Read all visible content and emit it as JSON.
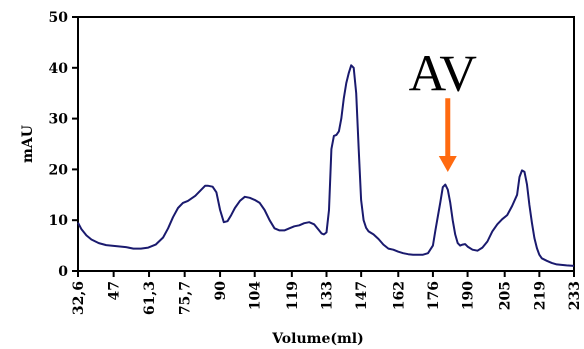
{
  "chart_data": {
    "type": "line",
    "xlabel": "Volume(ml)",
    "ylabel": "mAU",
    "ylim": [
      0,
      50
    ],
    "xlim": [
      32.6,
      233
    ],
    "y_ticks": [
      "0",
      "10",
      "20",
      "30",
      "40",
      "50"
    ],
    "x_ticks": [
      {
        "value": 32.6,
        "label": "32,6"
      },
      {
        "value": 47,
        "label": "47"
      },
      {
        "value": 61.3,
        "label": "61,3"
      },
      {
        "value": 75.7,
        "label": "75,7"
      },
      {
        "value": 90,
        "label": "90"
      },
      {
        "value": 104,
        "label": "104"
      },
      {
        "value": 119,
        "label": "119"
      },
      {
        "value": 133,
        "label": "133"
      },
      {
        "value": 147,
        "label": "147"
      },
      {
        "value": 162,
        "label": "162"
      },
      {
        "value": 176,
        "label": "176"
      },
      {
        "value": 190,
        "label": "190"
      },
      {
        "value": 205,
        "label": "205"
      },
      {
        "value": 219,
        "label": "219"
      },
      {
        "value": 233,
        "label": "233"
      }
    ],
    "grid": false,
    "series": [
      {
        "color": "#1a1a6e",
        "x": [
          32.6,
          34,
          36,
          38,
          41,
          44,
          48,
          52,
          55,
          58,
          61,
          64,
          67,
          69,
          71,
          73,
          75,
          77,
          80,
          82,
          84,
          85,
          87,
          88.5,
          90,
          91.5,
          93,
          94.5,
          96,
          98,
          100,
          102,
          104,
          106,
          108,
          110,
          112,
          114,
          116,
          118,
          120,
          122,
          124,
          126,
          128,
          130,
          131,
          132,
          133,
          134,
          135,
          136,
          137,
          138,
          139,
          140,
          141,
          142,
          143,
          144,
          145,
          146,
          147,
          148,
          149,
          150,
          151,
          152,
          154,
          156,
          158,
          160,
          162,
          164,
          166,
          168,
          170,
          172,
          174,
          176,
          177,
          178,
          179,
          180,
          181,
          182,
          183,
          184,
          185,
          186,
          187,
          188,
          189,
          190,
          192,
          194,
          196,
          198,
          200,
          202,
          204,
          206,
          208,
          210,
          211,
          212,
          213,
          214,
          215,
          216,
          217,
          218,
          219,
          220,
          222,
          224,
          226,
          228,
          230,
          233
        ],
        "y": [
          9.5,
          8.2,
          7.0,
          6.2,
          5.5,
          5.1,
          4.9,
          4.7,
          4.4,
          4.4,
          4.6,
          5.2,
          6.6,
          8.4,
          10.6,
          12.4,
          13.4,
          13.8,
          14.8,
          15.8,
          16.8,
          16.8,
          16.6,
          15.5,
          12.0,
          9.6,
          9.8,
          11.0,
          12.4,
          13.8,
          14.6,
          14.4,
          14.0,
          13.4,
          12.0,
          10.0,
          8.4,
          8.0,
          8.0,
          8.4,
          8.8,
          9.0,
          9.4,
          9.6,
          9.2,
          8.0,
          7.4,
          7.2,
          7.6,
          12.0,
          24.0,
          26.6,
          26.8,
          27.5,
          30.0,
          34.0,
          37.0,
          39.0,
          40.5,
          40.0,
          35.0,
          24.0,
          14.0,
          10.0,
          8.5,
          7.8,
          7.5,
          7.2,
          6.3,
          5.2,
          4.4,
          4.2,
          3.8,
          3.5,
          3.3,
          3.2,
          3.2,
          3.2,
          3.5,
          5.0,
          8.0,
          10.8,
          13.5,
          16.5,
          17.0,
          16.0,
          13.5,
          10.0,
          7.2,
          5.5,
          5.0,
          5.2,
          5.3,
          4.8,
          4.2,
          4.0,
          4.6,
          5.8,
          7.8,
          9.2,
          10.2,
          11.0,
          12.8,
          15.0,
          18.5,
          19.8,
          19.5,
          17.0,
          13.0,
          9.5,
          6.5,
          4.5,
          3.2,
          2.5,
          2.0,
          1.6,
          1.3,
          1.2,
          1.1,
          1.0
        ]
      }
    ],
    "annotations": [
      {
        "text": "AV",
        "x": 182,
        "arrow_top_y": 34,
        "arrow_tip_y": 19.5,
        "color": "#ff6a10"
      }
    ]
  }
}
